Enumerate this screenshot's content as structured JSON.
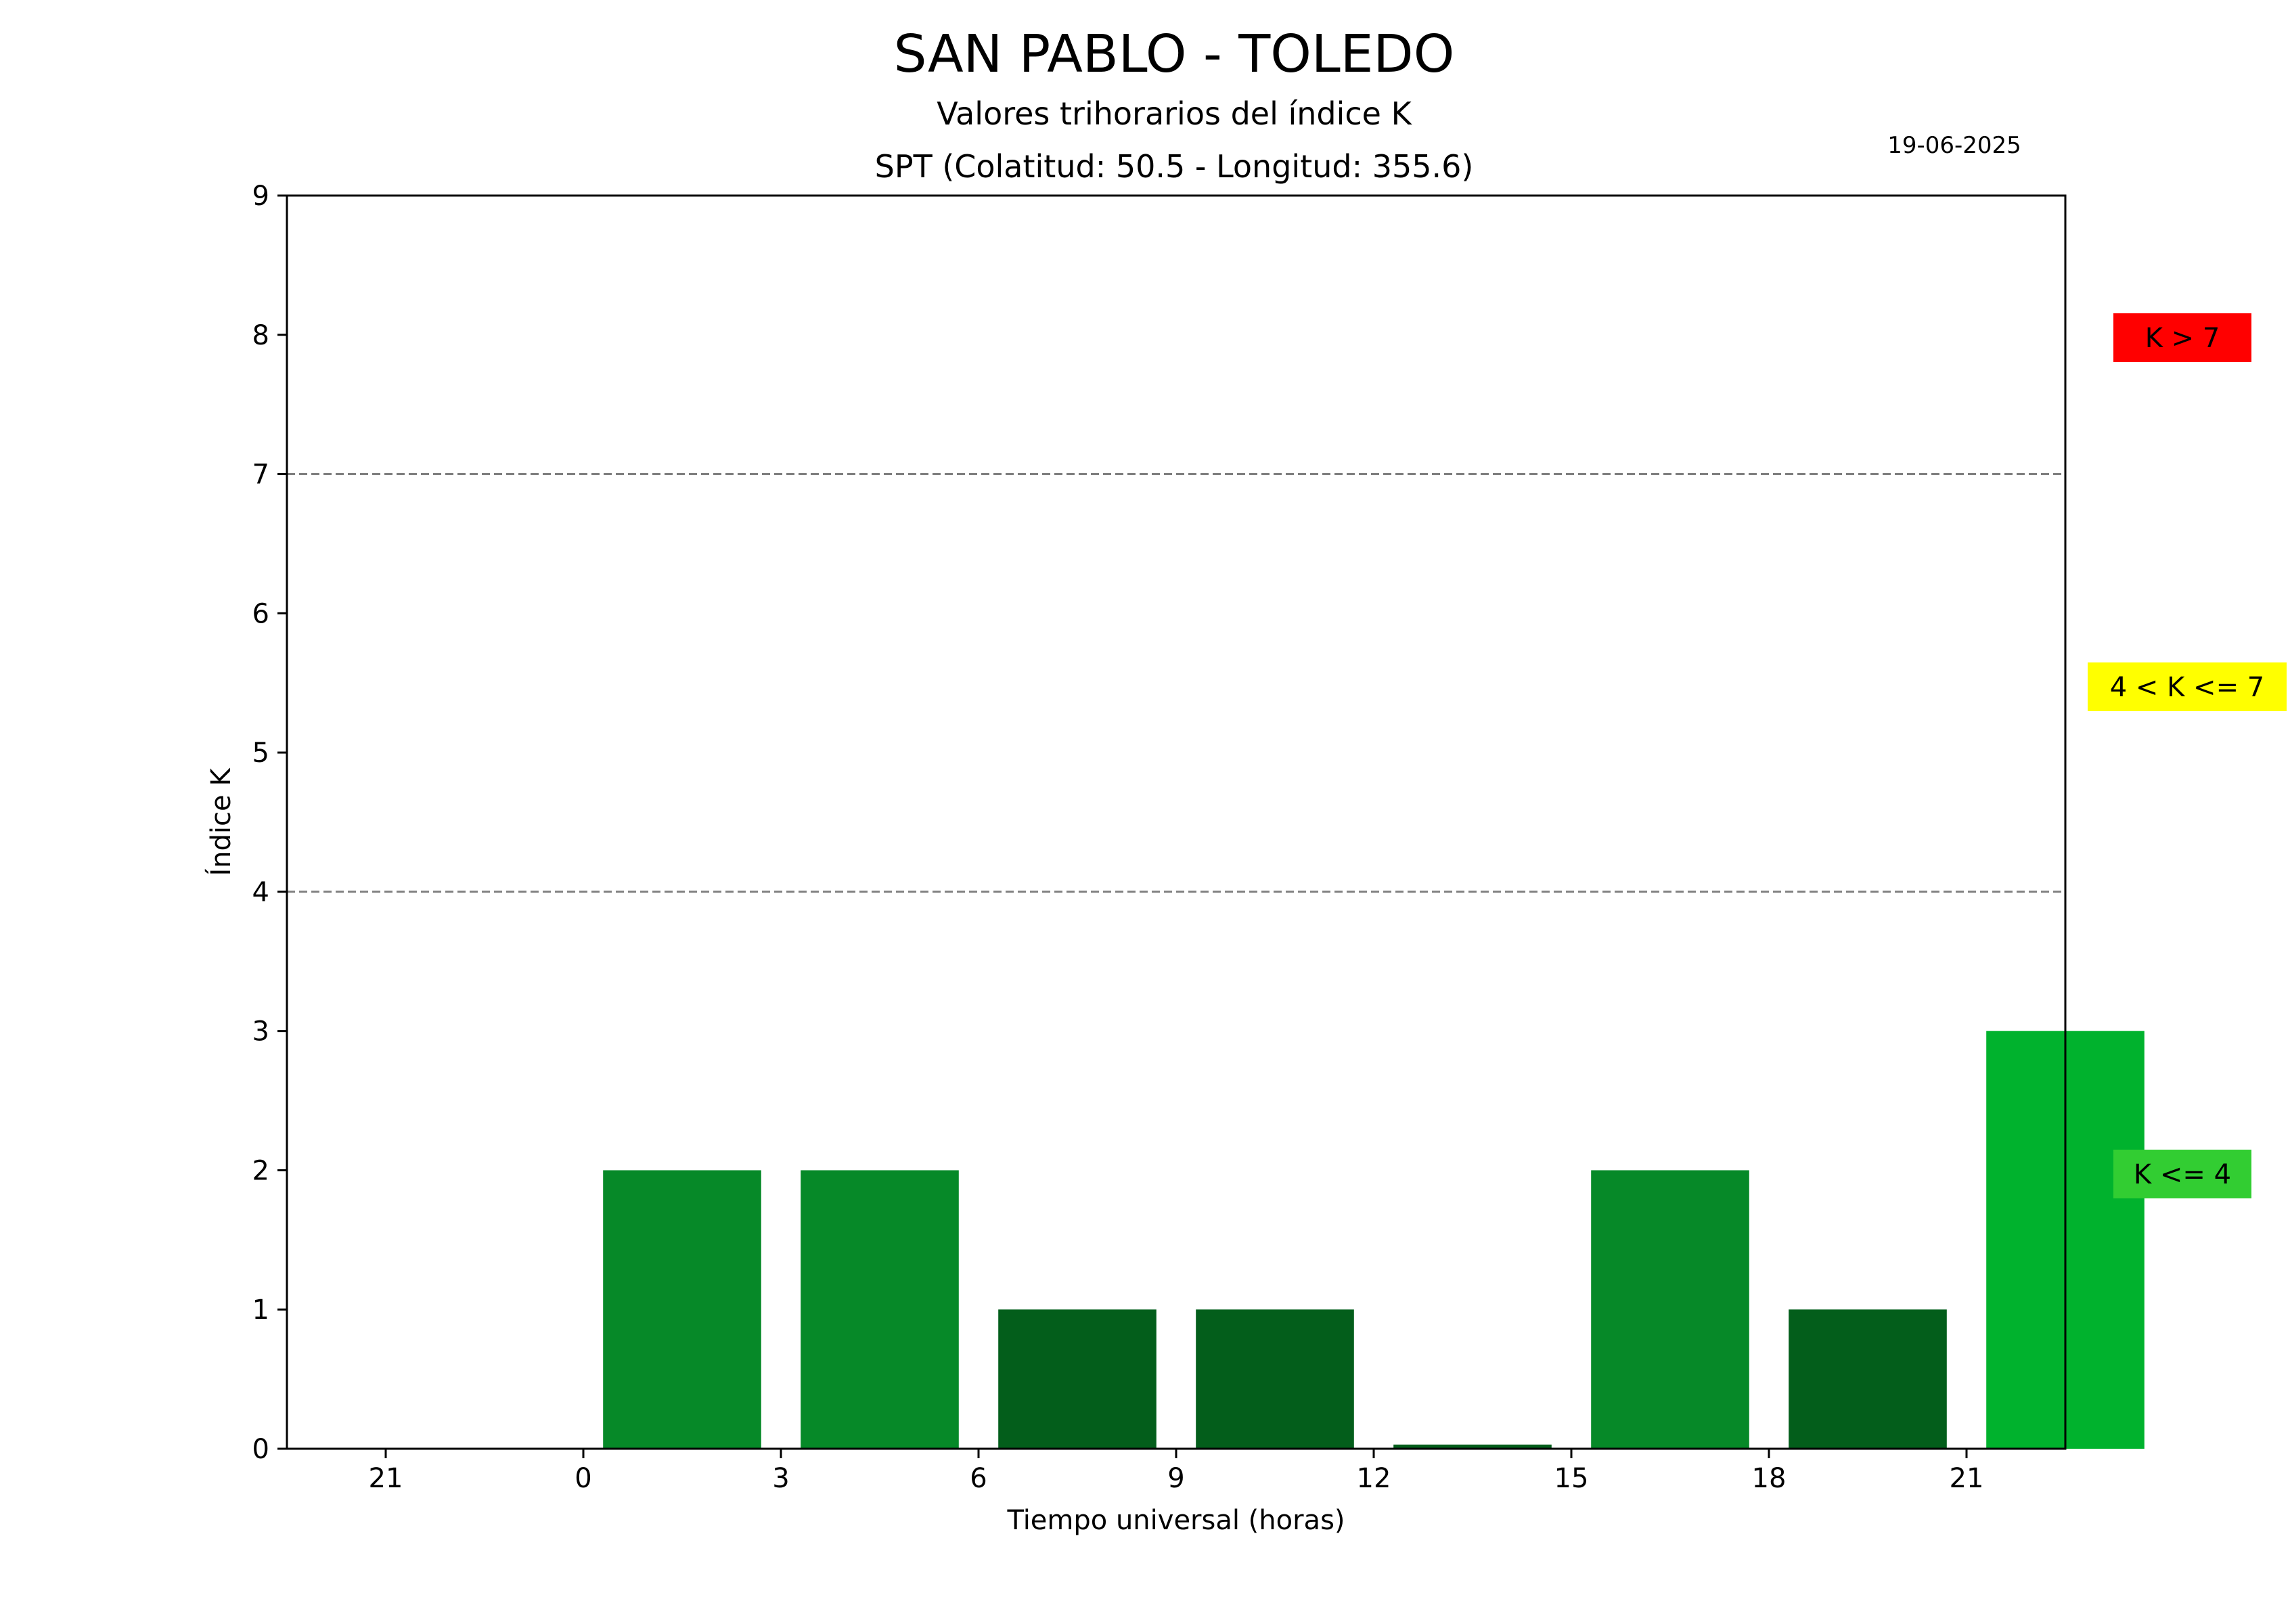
{
  "header": {
    "title": "SAN PABLO - TOLEDO",
    "subtitle": "Valores trihorarios del índice K",
    "station": "SPT (Colatitud: 50.5 - Longitud: 355.6)",
    "date": "19-06-2025"
  },
  "legend": [
    {
      "label": "K > 7",
      "color": "#ff0000"
    },
    {
      "label": "4 < K <= 7",
      "color": "#ffff00"
    },
    {
      "label": "K <= 4",
      "color": "#32cd32"
    }
  ],
  "chart_data": {
    "type": "bar",
    "title": "SAN PABLO - TOLEDO",
    "xlabel": "Tiempo universal (horas)",
    "ylabel": "Índice K",
    "x_tick_labels": [
      "21",
      "0",
      "3",
      "6",
      "9",
      "12",
      "15",
      "18",
      "21"
    ],
    "y_ticks": [
      0,
      1,
      2,
      3,
      4,
      5,
      6,
      7,
      8,
      9
    ],
    "ylim": [
      0,
      9
    ],
    "categories": [
      "0-3",
      "3-6",
      "6-9",
      "9-12",
      "12-15",
      "15-18",
      "18-21",
      "21-24"
    ],
    "values": [
      2,
      2,
      1,
      1,
      0.03,
      2,
      1,
      3
    ],
    "bar_colors": [
      "#068928",
      "#068928",
      "#035e1b",
      "#035e1b",
      "#035e1b",
      "#068928",
      "#035e1b",
      "#00b22d"
    ],
    "threshold_lines": [
      4,
      7
    ],
    "grid": false,
    "legend_position": "right"
  }
}
